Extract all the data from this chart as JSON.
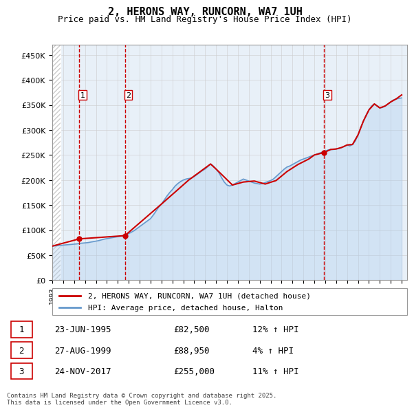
{
  "title": "2, HERONS WAY, RUNCORN, WA7 1UH",
  "subtitle": "Price paid vs. HM Land Registry's House Price Index (HPI)",
  "ylabel_values": [
    0,
    50000,
    100000,
    150000,
    200000,
    250000,
    300000,
    350000,
    400000,
    450000
  ],
  "ylim": [
    0,
    470000
  ],
  "xlim_start": 1993.0,
  "xlim_end": 2025.5,
  "legend_line1": "2, HERONS WAY, RUNCORN, WA7 1UH (detached house)",
  "legend_line2": "HPI: Average price, detached house, Halton",
  "sale_color": "#cc0000",
  "hpi_color": "#aaccee",
  "transactions": [
    {
      "num": 1,
      "date": "23-JUN-1995",
      "price": 82500,
      "hpi_pct": "12%",
      "year": 1995.47
    },
    {
      "num": 2,
      "date": "27-AUG-1999",
      "price": 88950,
      "hpi_pct": "4%",
      "year": 1999.65
    },
    {
      "num": 3,
      "date": "24-NOV-2017",
      "price": 255000,
      "hpi_pct": "11%",
      "year": 2017.9
    }
  ],
  "footer": "Contains HM Land Registry data © Crown copyright and database right 2025.\nThis data is licensed under the Open Government Licence v3.0.",
  "hpi_data_x": [
    1993.0,
    1993.25,
    1993.5,
    1993.75,
    1994.0,
    1994.25,
    1994.5,
    1994.75,
    1995.0,
    1995.25,
    1995.5,
    1995.75,
    1996.0,
    1996.25,
    1996.5,
    1996.75,
    1997.0,
    1997.25,
    1997.5,
    1997.75,
    1998.0,
    1998.25,
    1998.5,
    1998.75,
    1999.0,
    1999.25,
    1999.5,
    1999.75,
    2000.0,
    2000.25,
    2000.5,
    2000.75,
    2001.0,
    2001.25,
    2001.5,
    2001.75,
    2002.0,
    2002.25,
    2002.5,
    2002.75,
    2003.0,
    2003.25,
    2003.5,
    2003.75,
    2004.0,
    2004.25,
    2004.5,
    2004.75,
    2005.0,
    2005.25,
    2005.5,
    2005.75,
    2006.0,
    2006.25,
    2006.5,
    2006.75,
    2007.0,
    2007.25,
    2007.5,
    2007.75,
    2008.0,
    2008.25,
    2008.5,
    2008.75,
    2009.0,
    2009.25,
    2009.5,
    2009.75,
    2010.0,
    2010.25,
    2010.5,
    2010.75,
    2011.0,
    2011.25,
    2011.5,
    2011.75,
    2012.0,
    2012.25,
    2012.5,
    2012.75,
    2013.0,
    2013.25,
    2013.5,
    2013.75,
    2014.0,
    2014.25,
    2014.5,
    2014.75,
    2015.0,
    2015.25,
    2015.5,
    2015.75,
    2016.0,
    2016.25,
    2016.5,
    2016.75,
    2017.0,
    2017.25,
    2017.5,
    2017.75,
    2018.0,
    2018.25,
    2018.5,
    2018.75,
    2019.0,
    2019.25,
    2019.5,
    2019.75,
    2020.0,
    2020.25,
    2020.5,
    2020.75,
    2021.0,
    2021.25,
    2021.5,
    2021.75,
    2022.0,
    2022.25,
    2022.5,
    2022.75,
    2023.0,
    2023.25,
    2023.5,
    2023.75,
    2024.0,
    2024.25,
    2024.5,
    2024.75,
    2025.0
  ],
  "hpi_data_y": [
    68000,
    68500,
    69000,
    69200,
    70000,
    70500,
    71000,
    71500,
    72000,
    72500,
    73500,
    74000,
    74500,
    75000,
    76000,
    77000,
    78000,
    79000,
    80500,
    82000,
    83000,
    84000,
    85000,
    86000,
    87000,
    88000,
    89500,
    91000,
    93000,
    96000,
    99000,
    103000,
    107000,
    111000,
    115000,
    119000,
    123000,
    130000,
    138000,
    146000,
    152000,
    160000,
    168000,
    175000,
    181000,
    188000,
    193000,
    197000,
    200000,
    202000,
    203000,
    204000,
    207000,
    211000,
    215000,
    219000,
    222000,
    227000,
    232000,
    228000,
    222000,
    215000,
    205000,
    196000,
    190000,
    188000,
    190000,
    193000,
    196000,
    199000,
    202000,
    200000,
    198000,
    196000,
    194000,
    193000,
    192000,
    193000,
    195000,
    197000,
    199000,
    202000,
    207000,
    212000,
    217000,
    222000,
    226000,
    228000,
    231000,
    234000,
    237000,
    240000,
    242000,
    244000,
    246000,
    248000,
    250000,
    252000,
    254000,
    256000,
    258000,
    260000,
    261000,
    261000,
    262000,
    263000,
    265000,
    267000,
    270000,
    268000,
    271000,
    278000,
    290000,
    305000,
    318000,
    330000,
    340000,
    348000,
    352000,
    348000,
    344000,
    345000,
    348000,
    352000,
    356000,
    360000,
    362000,
    363000,
    364000
  ],
  "sale_data_x": [
    1993.0,
    1995.47,
    1995.47,
    1999.65,
    1999.65,
    2003.0,
    2005.5,
    2007.5,
    2008.0,
    2009.5,
    2010.5,
    2011.5,
    2012.5,
    2013.5,
    2014.5,
    2015.5,
    2016.5,
    2017.0,
    2017.9,
    2017.9,
    2018.5,
    2019.0,
    2019.5,
    2020.0,
    2020.5,
    2021.0,
    2021.5,
    2022.0,
    2022.5,
    2023.0,
    2023.5,
    2024.0,
    2024.5,
    2025.0
  ],
  "sale_data_y": [
    68000,
    82500,
    82500,
    88950,
    88950,
    152000,
    200000,
    232000,
    222000,
    190000,
    196000,
    198000,
    192000,
    199000,
    217000,
    231000,
    242000,
    250000,
    255000,
    255000,
    261000,
    262000,
    265000,
    270000,
    271000,
    290000,
    318000,
    340000,
    352000,
    344000,
    348000,
    356000,
    362000,
    370000
  ]
}
